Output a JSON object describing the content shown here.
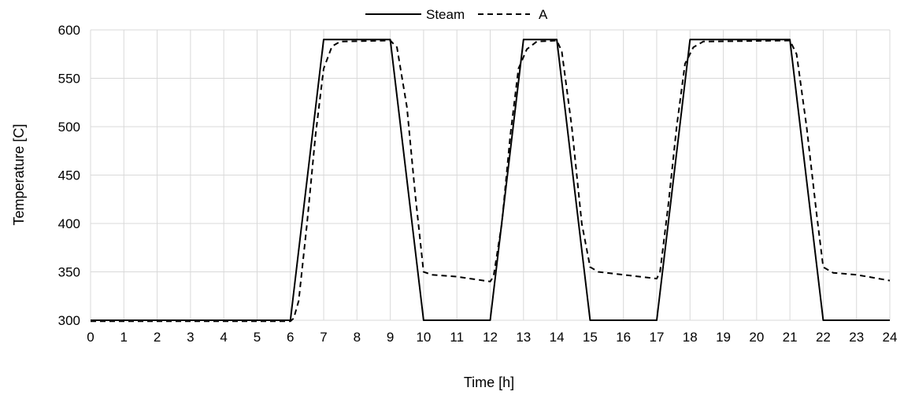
{
  "chart_data": {
    "type": "line",
    "xlabel": "Time [h]",
    "ylabel": "Temperature [C]",
    "xlim": [
      0,
      24
    ],
    "ylim": [
      300,
      600
    ],
    "x_ticks": [
      "0",
      "1",
      "2",
      "3",
      "4",
      "5",
      "6",
      "7",
      "8",
      "9",
      "10",
      "11",
      "12",
      "13",
      "14",
      "15",
      "16",
      "17",
      "18",
      "19",
      "20",
      "21",
      "22",
      "23",
      "24"
    ],
    "y_ticks": [
      "300",
      "350",
      "400",
      "450",
      "500",
      "550",
      "600"
    ],
    "grid": true,
    "legend": "top-center",
    "series": [
      {
        "name": "Steam",
        "style": "solid",
        "color": "#000000",
        "points": [
          [
            0,
            300
          ],
          [
            6,
            300
          ],
          [
            7,
            590
          ],
          [
            9,
            590
          ],
          [
            10,
            300
          ],
          [
            12,
            300
          ],
          [
            13,
            590
          ],
          [
            14,
            590
          ],
          [
            15,
            300
          ],
          [
            17,
            300
          ],
          [
            18,
            590
          ],
          [
            21,
            590
          ],
          [
            22,
            300
          ],
          [
            24,
            300
          ]
        ]
      },
      {
        "name": "A",
        "style": "dashed",
        "color": "#000000",
        "points": [
          [
            0,
            299
          ],
          [
            6,
            299
          ],
          [
            6.1,
            302
          ],
          [
            6.25,
            320
          ],
          [
            6.5,
            400
          ],
          [
            6.75,
            490
          ],
          [
            7,
            560
          ],
          [
            7.25,
            583
          ],
          [
            7.5,
            588
          ],
          [
            9,
            589
          ],
          [
            9.2,
            582
          ],
          [
            9.5,
            520
          ],
          [
            9.75,
            430
          ],
          [
            10,
            350
          ],
          [
            10.25,
            347
          ],
          [
            11,
            345
          ],
          [
            12,
            340
          ],
          [
            12.1,
            345
          ],
          [
            12.35,
            400
          ],
          [
            12.6,
            490
          ],
          [
            12.85,
            560
          ],
          [
            13.1,
            580
          ],
          [
            13.4,
            588
          ],
          [
            14,
            589
          ],
          [
            14.15,
            578
          ],
          [
            14.45,
            500
          ],
          [
            14.75,
            400
          ],
          [
            15,
            355
          ],
          [
            15.25,
            350
          ],
          [
            16,
            347
          ],
          [
            17,
            343
          ],
          [
            17.1,
            350
          ],
          [
            17.35,
            420
          ],
          [
            17.6,
            500
          ],
          [
            17.85,
            565
          ],
          [
            18.1,
            582
          ],
          [
            18.4,
            588
          ],
          [
            21,
            589
          ],
          [
            21.2,
            575
          ],
          [
            21.5,
            500
          ],
          [
            21.8,
            410
          ],
          [
            22,
            355
          ],
          [
            22.3,
            349
          ],
          [
            23,
            347
          ],
          [
            24,
            341
          ]
        ]
      }
    ]
  }
}
